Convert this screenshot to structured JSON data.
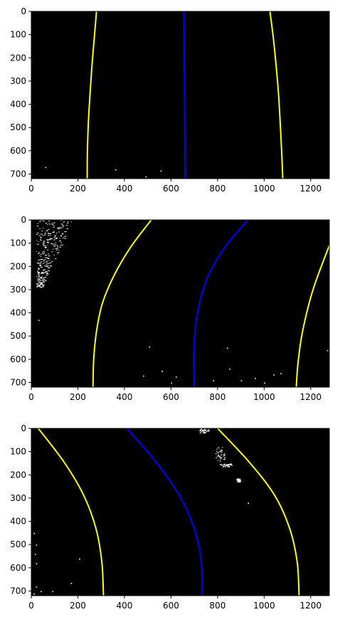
{
  "chart_data": [
    {
      "type": "line",
      "image": "binary-lane-warp",
      "xlim": [
        0,
        1280
      ],
      "ylim": [
        720,
        0
      ],
      "xticks": [
        "0",
        "200",
        "400",
        "600",
        "800",
        "1000",
        "1200"
      ],
      "yticks": [
        "0",
        "100",
        "200",
        "300",
        "400",
        "500",
        "600",
        "700"
      ],
      "background": "#000000",
      "series": [
        {
          "color": "#ffff00",
          "x": [
            280,
            270,
            260,
            252,
            245,
            241,
            240
          ],
          "y": [
            0,
            120,
            240,
            360,
            480,
            600,
            720
          ]
        },
        {
          "color": "#0000ff",
          "x": [
            655,
            656,
            657,
            658,
            659,
            660,
            661
          ],
          "y": [
            0,
            120,
            240,
            360,
            480,
            600,
            720
          ]
        },
        {
          "color": "#ffff00",
          "x": [
            1025,
            1040,
            1052,
            1062,
            1069,
            1075,
            1080
          ],
          "y": [
            0,
            120,
            240,
            360,
            480,
            600,
            720
          ]
        }
      ],
      "pixels": [
        [
          60,
          670
        ],
        [
          360,
          680
        ],
        [
          490,
          710
        ],
        [
          555,
          685
        ]
      ]
    },
    {
      "type": "line",
      "image": "binary-lane-warp",
      "xlim": [
        0,
        1280
      ],
      "ylim": [
        720,
        0
      ],
      "xticks": [
        "0",
        "200",
        "400",
        "600",
        "800",
        "1000",
        "1200"
      ],
      "yticks": [
        "0",
        "100",
        "200",
        "300",
        "400",
        "500",
        "600",
        "700"
      ],
      "background": "#000000",
      "series": [
        {
          "color": "#ffff00",
          "x": [
            515,
            425,
            355,
            305,
            280,
            268,
            265
          ],
          "y": [
            0,
            120,
            240,
            360,
            480,
            600,
            720
          ]
        },
        {
          "color": "#0000ff",
          "x": [
            930,
            830,
            760,
            722,
            703,
            697,
            700
          ],
          "y": [
            0,
            120,
            240,
            360,
            480,
            600,
            720
          ]
        },
        {
          "color": "#ffff00",
          "x": [
            1280,
            1210,
            1165,
            1145,
            1138
          ],
          "y": [
            110,
            300,
            480,
            620,
            720
          ]
        }
      ],
      "noise_patch": {
        "x": [
          20,
          180
        ],
        "y": [
          0,
          290
        ]
      },
      "pixels": [
        [
          30,
          430
        ],
        [
          505,
          545
        ],
        [
          480,
          670
        ],
        [
          560,
          650
        ],
        [
          600,
          700
        ],
        [
          840,
          550
        ],
        [
          850,
          640
        ],
        [
          900,
          690
        ],
        [
          960,
          680
        ],
        [
          1000,
          700
        ],
        [
          1040,
          665
        ],
        [
          1070,
          660
        ],
        [
          1270,
          560
        ],
        [
          780,
          690
        ],
        [
          620,
          675
        ]
      ]
    },
    {
      "type": "line",
      "image": "binary-lane-warp",
      "xlim": [
        0,
        1280
      ],
      "ylim": [
        720,
        0
      ],
      "xticks": [
        "0",
        "200",
        "400",
        "600",
        "800",
        "1000",
        "1200"
      ],
      "yticks": [
        "0",
        "100",
        "200",
        "300",
        "400",
        "500",
        "600",
        "700"
      ],
      "background": "#000000",
      "series": [
        {
          "color": "#ffff00",
          "x": [
            30,
            140,
            225,
            278,
            303,
            310
          ],
          "y": [
            0,
            144,
            288,
            432,
            576,
            720
          ]
        },
        {
          "color": "#0000ff",
          "x": [
            410,
            535,
            635,
            700,
            730,
            732
          ],
          "y": [
            0,
            144,
            288,
            432,
            576,
            720
          ]
        },
        {
          "color": "#ffff00",
          "x": [
            800,
            935,
            1045,
            1110,
            1142,
            1150
          ],
          "y": [
            0,
            144,
            288,
            432,
            576,
            720
          ]
        }
      ],
      "blob_patches": [
        {
          "x": [
            720,
            760
          ],
          "y": [
            0,
            20
          ]
        },
        {
          "x": [
            790,
            830
          ],
          "y": [
            80,
            140
          ]
        },
        {
          "x": [
            810,
            860
          ],
          "y": [
            150,
            165
          ]
        },
        {
          "x": [
            880,
            895
          ],
          "y": [
            215,
            230
          ]
        }
      ],
      "pixels": [
        [
          930,
          320
        ],
        [
          10,
          450
        ],
        [
          20,
          500
        ],
        [
          15,
          540
        ],
        [
          20,
          580
        ],
        [
          205,
          560
        ],
        [
          170,
          665
        ],
        [
          90,
          700
        ],
        [
          20,
          680
        ],
        [
          40,
          700
        ],
        [
          10,
          710
        ]
      ]
    }
  ]
}
